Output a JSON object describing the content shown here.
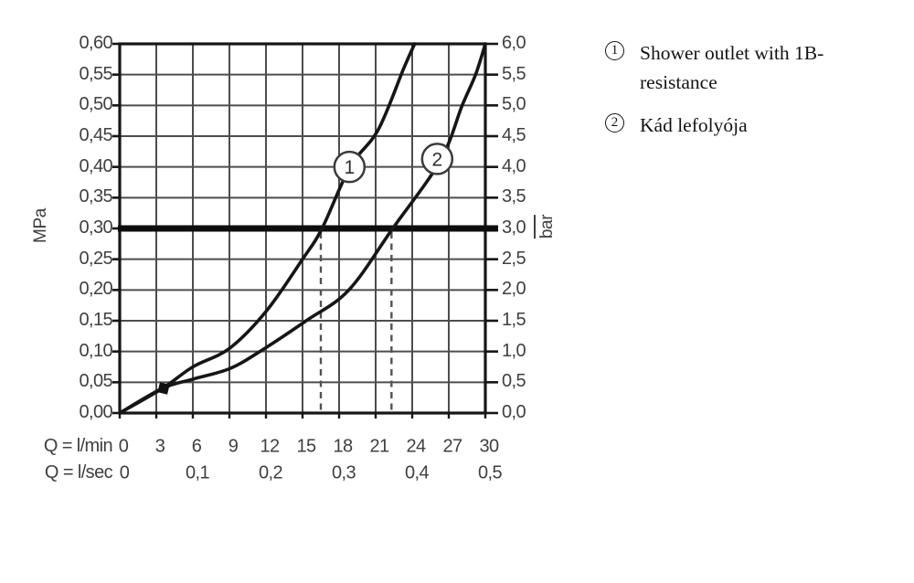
{
  "axes": {
    "x_label_lmin": "Q = l/min",
    "x_label_lsec": "Q = l/sec",
    "y_left_unit": "MPa",
    "y_right_unit": "bar"
  },
  "legend": {
    "position": "right",
    "items": [
      {
        "symbol": "1",
        "label": "Shower outlet with 1B-resistance"
      },
      {
        "symbol": "2",
        "label": "Kád lefolyója"
      }
    ]
  },
  "chart_data": {
    "type": "line",
    "title": "",
    "grid": true,
    "legend_position": "right",
    "x_axis": {
      "label": "Q = l/min",
      "secondary_label": "Q = l/sec",
      "range_lmin": [
        0,
        30
      ],
      "ticks_lmin": [
        "0",
        "3",
        "6",
        "9",
        "12",
        "15",
        "18",
        "21",
        "24",
        "27",
        "30"
      ],
      "ticks_lsec": [
        "0",
        "0,1",
        "0,2",
        "0,3",
        "0,4",
        "0,5"
      ],
      "ticks_lsec_at_lmin": [
        0,
        6,
        12,
        18,
        24,
        30
      ]
    },
    "y_axis_left": {
      "unit": "MPa",
      "range": [
        0,
        0.6
      ],
      "ticks": [
        "0,60",
        "0,55",
        "0,50",
        "0,45",
        "0,40",
        "0,35",
        "0,30",
        "0,25",
        "0,20",
        "0,15",
        "0,10",
        "0,05",
        "0,00"
      ]
    },
    "y_axis_right": {
      "unit": "bar",
      "range": [
        0,
        6
      ],
      "ticks": [
        "6,0",
        "5,5",
        "5,0",
        "4,5",
        "4,0",
        "3,5",
        "3,0",
        "2,5",
        "2,0",
        "1,5",
        "1,0",
        "0,5",
        "0,0"
      ]
    },
    "series": [
      {
        "id": "1",
        "name": "Shower outlet with 1B-resistance",
        "points_lmin_mpa": [
          [
            0,
            0
          ],
          [
            3.5,
            0.04
          ],
          [
            6,
            0.075
          ],
          [
            9,
            0.105
          ],
          [
            12,
            0.165
          ],
          [
            15,
            0.25
          ],
          [
            16.6,
            0.3
          ],
          [
            18.9,
            0.4
          ],
          [
            21.2,
            0.46
          ],
          [
            23.3,
            0.56
          ],
          [
            24.2,
            0.6
          ]
        ],
        "label_at_lmin_mpa": [
          18.85,
          0.4
        ]
      },
      {
        "id": "2",
        "name": "Kád lefolyója",
        "points_lmin_mpa": [
          [
            0,
            0
          ],
          [
            3.5,
            0.04
          ],
          [
            6,
            0.055
          ],
          [
            9,
            0.072
          ],
          [
            11.5,
            0.1
          ],
          [
            15.3,
            0.15
          ],
          [
            18.8,
            0.2
          ],
          [
            22.4,
            0.3
          ],
          [
            26.3,
            0.41
          ],
          [
            28.1,
            0.5
          ],
          [
            29.2,
            0.55
          ],
          [
            30,
            0.6
          ]
        ],
        "label_at_lmin_mpa": [
          26.05,
          0.413
        ]
      }
    ],
    "reference_line_mpa": 0.3,
    "reference_line_bar": 3.0,
    "guide_flows_lmin": [
      16.5,
      22.3
    ],
    "start_marker_lmin_mpa": [
      3.6,
      0.04
    ]
  },
  "colors": {
    "background": "#ffffff",
    "curve": "#161616",
    "plot_border": "#161616",
    "grid": "#4d4d4d",
    "tick_text": "#3f3f3f",
    "dashed_guide": "#525252",
    "reference_line": "#0d0d0d",
    "legend_text": "#141414",
    "marker": "#111111",
    "curve_label_stroke": "#3a3a3a",
    "curve_label_fill": "#ffffff"
  }
}
